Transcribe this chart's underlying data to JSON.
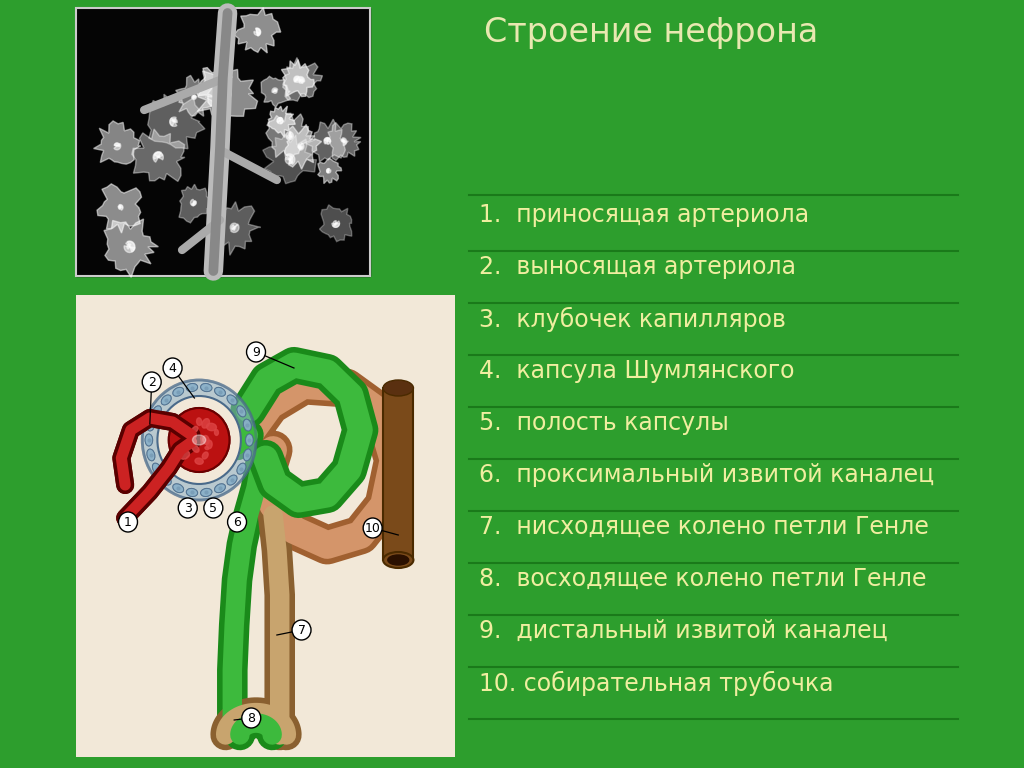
{
  "title": "Строение нефрона",
  "title_color": "#e8e8b0",
  "bg_color": "#2d9e2d",
  "right_panel_items": [
    "1.  приносящая артериола",
    "2.  выносящая артериола",
    "3.  клубочек капилляров",
    "4.  капсула Шумлянского",
    "5.  полость капсулы",
    "6.  проксимальный извитой каналец",
    "7.  нисходящее колено петли Генле",
    "8.  восходящее колено петли Генле",
    "9.  дистальный извитой каналец",
    "10. собирательная трубочка"
  ],
  "text_color": "#f0eea0",
  "divider_color": "#1a7a1a",
  "diagram_bg": "#f2e8d8",
  "green_color": "#3dba3d",
  "green_dark": "#1a8a1a",
  "peach_color": "#d4956a",
  "peach_dark": "#a06030",
  "tan_color": "#c8a46e",
  "tan_dark": "#8a6030",
  "red_color": "#cc2222",
  "darkred_color": "#8b0000",
  "blue_gray": "#8ab0c8",
  "blue_gray_dark": "#4a6a8a",
  "brown_color": "#7a4a1a",
  "brown_dark": "#4a2a00"
}
